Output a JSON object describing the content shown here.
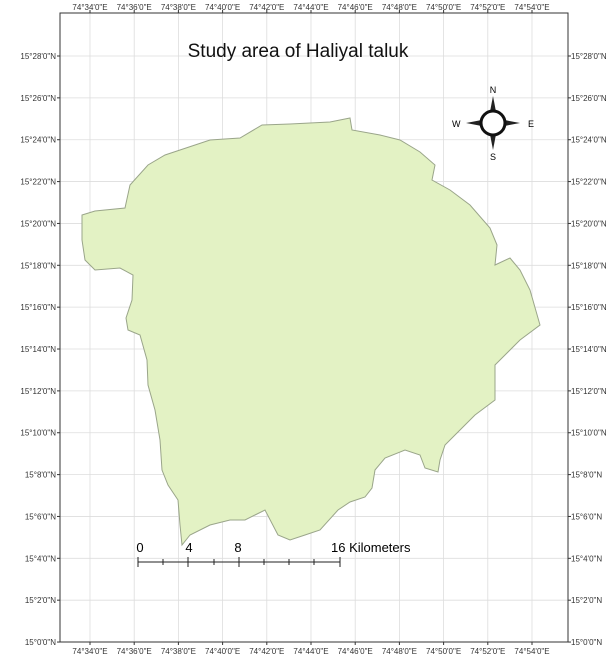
{
  "map": {
    "title": "Study area of Haliyal taluk",
    "longitudes": [
      "74°34'0\"E",
      "74°36'0\"E",
      "74°38'0\"E",
      "74°40'0\"E",
      "74°42'0\"E",
      "74°44'0\"E",
      "74°46'0\"E",
      "74°48'0\"E",
      "74°50'0\"E",
      "74°52'0\"E",
      "74°54'0\"E"
    ],
    "latitudes": [
      "15°28'0\"N",
      "15°26'0\"N",
      "15°24'0\"N",
      "15°22'0\"N",
      "15°20'0\"N",
      "15°18'0\"N",
      "15°16'0\"N",
      "15°14'0\"N",
      "15°12'0\"N",
      "15°10'0\"N",
      "15°8'0\"N",
      "15°6'0\"N",
      "15°4'0\"N",
      "15°2'0\"N",
      "15°0'0\"N"
    ],
    "compass": {
      "n": "N",
      "s": "S",
      "e": "E",
      "w": "W"
    },
    "scale": {
      "labels": [
        "0",
        "4",
        "8",
        "16 Kilometers"
      ]
    }
  }
}
